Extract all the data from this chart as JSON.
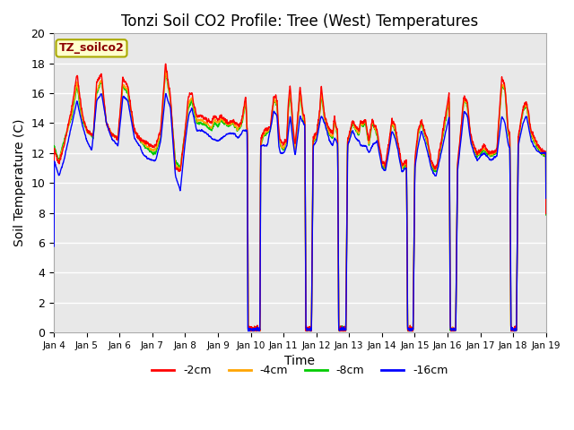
{
  "title": "Tonzi Soil CO2 Profile: Tree (West) Temperatures",
  "xlabel": "Time",
  "ylabel": "Soil Temperature (C)",
  "ylim": [
    0,
    20
  ],
  "x_tick_labels": [
    "Jan 4",
    "Jan 5",
    "Jan 6",
    "Jan 7",
    "Jan 8",
    "Jan 9",
    "Jan 10",
    "Jan 11",
    "Jan 12",
    "Jan 13",
    "Jan 14",
    "Jan 15",
    "Jan 16",
    "Jan 17",
    "Jan 18",
    "Jan 19"
  ],
  "colors": {
    "neg2cm": "#ff0000",
    "neg4cm": "#ffa500",
    "neg8cm": "#00cc00",
    "neg16cm": "#0000ff"
  },
  "legend_labels": [
    "-2cm",
    "-4cm",
    "-8cm",
    "-16cm"
  ],
  "annotation_label": "TZ_soilco2",
  "annotation_color": "#8b0000",
  "annotation_bg": "#ffffcc",
  "annotation_border": "#aaaa00",
  "plot_bg": "#e8e8e8",
  "fig_bg": "#ffffff",
  "grid_color": "#ffffff",
  "title_fontsize": 12,
  "axis_fontsize": 9,
  "label_fontsize": 10
}
